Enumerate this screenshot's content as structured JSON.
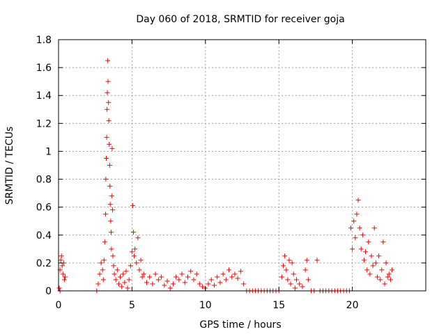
{
  "chart_data": {
    "type": "scatter",
    "title": "Day 060 of 2018, SRMTID for receiver goja",
    "xlabel": "GPS time / hours",
    "ylabel": "SRMTID / TECUs",
    "xlim": [
      0,
      25
    ],
    "ylim": [
      0,
      1.8
    ],
    "xticks": [
      0,
      5,
      10,
      15,
      20
    ],
    "yticks": [
      0,
      0.2,
      0.4,
      0.6,
      0.8,
      1,
      1.2,
      1.4,
      1.6,
      1.8
    ],
    "xtick_labels": [
      "0",
      "5",
      "10",
      "15",
      "20"
    ],
    "ytick_labels": [
      "0",
      "0.2",
      "0.4",
      "0.6",
      "0.8",
      "1",
      "1.2",
      "1.4",
      "1.6",
      "1.8"
    ],
    "grid": true,
    "marker": "+",
    "series": [
      {
        "name": "SRMTID",
        "color": "#ff0000",
        "points": [
          [
            0.05,
            0.02
          ],
          [
            0.1,
            0.15
          ],
          [
            0.15,
            0.22
          ],
          [
            0.2,
            0.25
          ],
          [
            0.25,
            0.18
          ],
          [
            0.3,
            0.12
          ],
          [
            0.35,
            0.2
          ],
          [
            0.4,
            0.08
          ],
          [
            0.45,
            0.1
          ],
          [
            0.1,
            0.0
          ],
          [
            2.6,
            0.0
          ],
          [
            2.7,
            0.05
          ],
          [
            2.8,
            0.12
          ],
          [
            2.9,
            0.2
          ],
          [
            3.0,
            0.15
          ],
          [
            3.05,
            0.08
          ],
          [
            3.1,
            0.22
          ],
          [
            3.15,
            0.35
          ],
          [
            3.2,
            0.55
          ],
          [
            3.22,
            0.8
          ],
          [
            3.25,
            0.95
          ],
          [
            3.28,
            1.1
          ],
          [
            3.3,
            1.3
          ],
          [
            3.32,
            1.42
          ],
          [
            3.35,
            1.65
          ],
          [
            3.37,
            1.5
          ],
          [
            3.4,
            1.35
          ],
          [
            3.42,
            1.22
          ],
          [
            3.45,
            1.05
          ],
          [
            3.48,
            0.9
          ],
          [
            3.5,
            0.75
          ],
          [
            3.52,
            0.62
          ],
          [
            3.55,
            0.5
          ],
          [
            3.58,
            0.42
          ],
          [
            3.6,
            0.3
          ],
          [
            3.62,
            0.68
          ],
          [
            3.65,
            1.02
          ],
          [
            3.68,
            0.58
          ],
          [
            3.7,
            0.25
          ],
          [
            3.75,
            0.18
          ],
          [
            3.8,
            0.12
          ],
          [
            3.9,
            0.08
          ],
          [
            4.0,
            0.15
          ],
          [
            4.1,
            0.05
          ],
          [
            4.2,
            0.1
          ],
          [
            4.3,
            0.03
          ],
          [
            4.4,
            0.12
          ],
          [
            4.5,
            0.06
          ],
          [
            4.6,
            0.14
          ],
          [
            4.7,
            0.02
          ],
          [
            4.8,
            0.08
          ],
          [
            4.9,
            0.18
          ],
          [
            5.0,
            0.28
          ],
          [
            5.05,
            0.61
          ],
          [
            5.1,
            0.42
          ],
          [
            5.15,
            0.25
          ],
          [
            5.2,
            0.3
          ],
          [
            5.3,
            0.2
          ],
          [
            5.4,
            0.38
          ],
          [
            5.5,
            0.15
          ],
          [
            5.6,
            0.22
          ],
          [
            5.7,
            0.1
          ],
          [
            5.8,
            0.12
          ],
          [
            6.0,
            0.06
          ],
          [
            6.2,
            0.1
          ],
          [
            6.4,
            0.05
          ],
          [
            6.6,
            0.12
          ],
          [
            6.8,
            0.08
          ],
          [
            7.0,
            0.1
          ],
          [
            7.2,
            0.04
          ],
          [
            7.4,
            0.07
          ],
          [
            7.6,
            0.02
          ],
          [
            7.8,
            0.05
          ],
          [
            8.0,
            0.1
          ],
          [
            8.2,
            0.08
          ],
          [
            8.4,
            0.12
          ],
          [
            8.6,
            0.06
          ],
          [
            8.8,
            0.1
          ],
          [
            9.0,
            0.14
          ],
          [
            9.2,
            0.08
          ],
          [
            9.4,
            0.12
          ],
          [
            9.6,
            0.05
          ],
          [
            9.8,
            0.03
          ],
          [
            10.0,
            0.02
          ],
          [
            10.2,
            0.05
          ],
          [
            10.4,
            0.08
          ],
          [
            10.6,
            0.04
          ],
          [
            10.8,
            0.1
          ],
          [
            11.0,
            0.06
          ],
          [
            11.2,
            0.12
          ],
          [
            11.4,
            0.08
          ],
          [
            11.6,
            0.15
          ],
          [
            11.8,
            0.1
          ],
          [
            12.0,
            0.12
          ],
          [
            12.2,
            0.09
          ],
          [
            12.4,
            0.14
          ],
          [
            12.6,
            0.05
          ],
          [
            12.8,
            0.0
          ],
          [
            13.0,
            0.0
          ],
          [
            13.2,
            0.0
          ],
          [
            13.4,
            0.0
          ],
          [
            13.6,
            0.0
          ],
          [
            13.8,
            0.0
          ],
          [
            14.0,
            0.0
          ],
          [
            14.2,
            0.0
          ],
          [
            14.4,
            0.0
          ],
          [
            14.6,
            0.0
          ],
          [
            14.8,
            0.0
          ],
          [
            15.0,
            0.0
          ],
          [
            15.2,
            0.1
          ],
          [
            15.3,
            0.18
          ],
          [
            15.4,
            0.25
          ],
          [
            15.5,
            0.15
          ],
          [
            15.6,
            0.08
          ],
          [
            15.7,
            0.22
          ],
          [
            15.8,
            0.05
          ],
          [
            15.9,
            0.2
          ],
          [
            16.0,
            0.12
          ],
          [
            16.1,
            0.02
          ],
          [
            16.2,
            0.08
          ],
          [
            16.4,
            0.05
          ],
          [
            16.6,
            0.03
          ],
          [
            16.8,
            0.15
          ],
          [
            16.9,
            0.22
          ],
          [
            17.0,
            0.08
          ],
          [
            17.2,
            0.0
          ],
          [
            17.4,
            0.0
          ],
          [
            17.6,
            0.22
          ],
          [
            17.8,
            0.0
          ],
          [
            18.0,
            0.0
          ],
          [
            18.2,
            0.0
          ],
          [
            18.4,
            0.0
          ],
          [
            18.6,
            0.0
          ],
          [
            18.8,
            0.0
          ],
          [
            19.0,
            0.0
          ],
          [
            19.2,
            0.0
          ],
          [
            19.4,
            0.0
          ],
          [
            19.6,
            0.0
          ],
          [
            19.8,
            0.0
          ],
          [
            19.9,
            0.45
          ],
          [
            20.0,
            0.3
          ],
          [
            20.1,
            0.5
          ],
          [
            20.2,
            0.38
          ],
          [
            20.3,
            0.55
          ],
          [
            20.4,
            0.65
          ],
          [
            20.5,
            0.45
          ],
          [
            20.6,
            0.3
          ],
          [
            20.7,
            0.4
          ],
          [
            20.8,
            0.22
          ],
          [
            20.9,
            0.28
          ],
          [
            21.0,
            0.15
          ],
          [
            21.1,
            0.35
          ],
          [
            21.2,
            0.12
          ],
          [
            21.3,
            0.25
          ],
          [
            21.4,
            0.18
          ],
          [
            21.5,
            0.45
          ],
          [
            21.6,
            0.2
          ],
          [
            21.7,
            0.1
          ],
          [
            21.8,
            0.25
          ],
          [
            21.9,
            0.08
          ],
          [
            22.0,
            0.15
          ],
          [
            22.1,
            0.35
          ],
          [
            22.2,
            0.05
          ],
          [
            22.3,
            0.2
          ],
          [
            22.4,
            0.1
          ],
          [
            22.5,
            0.12
          ],
          [
            22.6,
            0.08
          ],
          [
            22.7,
            0.15
          ]
        ]
      }
    ]
  }
}
